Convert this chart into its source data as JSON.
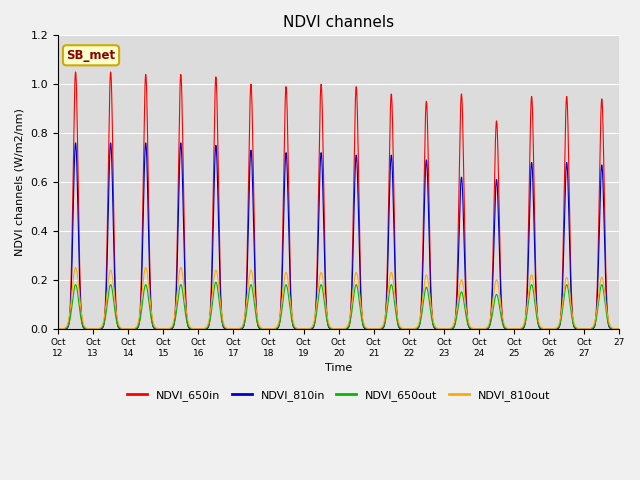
{
  "title": "NDVI channels",
  "ylabel": "NDVI channels (W/m2/nm)",
  "xlabel": "Time",
  "annotation": "SB_met",
  "ylim": [
    0,
    1.2
  ],
  "plot_bg_color": "#dcdcdc",
  "fig_bg_color": "#f0f0f0",
  "line_colors": {
    "NDVI_650in": "#ff0000",
    "NDVI_810in": "#0000cc",
    "NDVI_650out": "#00bb00",
    "NDVI_810out": "#ffaa00"
  },
  "legend_labels": [
    "NDVI_650in",
    "NDVI_810in",
    "NDVI_650out",
    "NDVI_810out"
  ],
  "tick_labels": [
    "Oct 12",
    "Oct 13",
    "Oct 14",
    "Oct 15",
    "Oct 16",
    "Oct 17",
    "Oct 18",
    "Oct 19",
    "Oct 20",
    "Oct 21",
    "Oct 22",
    "Oct 23",
    "Oct 24",
    "Oct 25",
    "Oct 26",
    "Oct 27"
  ],
  "peak_650in": [
    1.05,
    1.05,
    1.04,
    1.04,
    1.03,
    1.0,
    0.99,
    1.0,
    0.99,
    0.96,
    0.93,
    0.96,
    0.85,
    0.95,
    0.95,
    0.94
  ],
  "peak_810in": [
    0.76,
    0.76,
    0.76,
    0.76,
    0.75,
    0.73,
    0.72,
    0.72,
    0.71,
    0.71,
    0.69,
    0.62,
    0.61,
    0.68,
    0.68,
    0.67
  ],
  "peak_650out": [
    0.18,
    0.18,
    0.18,
    0.18,
    0.19,
    0.18,
    0.18,
    0.18,
    0.18,
    0.18,
    0.17,
    0.15,
    0.14,
    0.18,
    0.18,
    0.18
  ],
  "peak_810out": [
    0.25,
    0.24,
    0.25,
    0.25,
    0.24,
    0.24,
    0.23,
    0.23,
    0.23,
    0.23,
    0.22,
    0.2,
    0.2,
    0.22,
    0.21,
    0.21
  ],
  "n_days": 16,
  "points_per_day": 500,
  "pulse_sigma_650in": 0.07,
  "pulse_sigma_810in": 0.07,
  "pulse_sigma_650out": 0.09,
  "pulse_sigma_810out": 0.1
}
